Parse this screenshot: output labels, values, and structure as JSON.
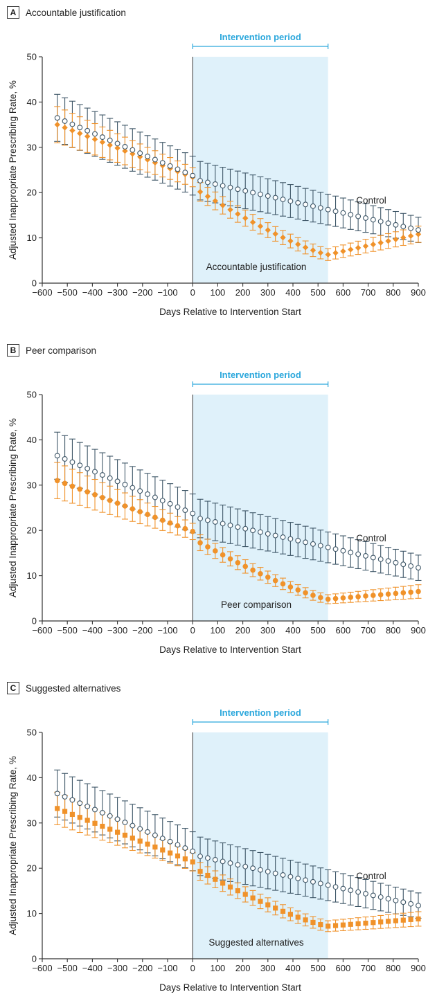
{
  "chart_data": [
    {
      "type": "scatter",
      "panel_letter": "A",
      "title": "Accountable justification",
      "xlabel": "Days Relative to Intervention Start",
      "ylabel": "Adjusted Inappropriate Prescribing Rate, %",
      "xlim": [
        -600,
        900
      ],
      "ylim": [
        0,
        50
      ],
      "xticks": [
        -600,
        -500,
        -400,
        -300,
        -200,
        -100,
        0,
        100,
        200,
        300,
        400,
        500,
        600,
        700,
        800,
        900
      ],
      "yticks": [
        0,
        10,
        20,
        30,
        40,
        50
      ],
      "intervention_period": {
        "label": "Intervention period",
        "start": 0,
        "end": 540
      },
      "marker": "diamond",
      "control": {
        "name": "Control",
        "start": 36.5,
        "pre_slope": -0.02361,
        "post_start": 23.0,
        "post_slope": -0.0125,
        "post_end": 12.0,
        "err_start": 5.2,
        "err_end": 2.8
      },
      "intervention": {
        "name": "Accountable justification",
        "start": 35.0,
        "pre_slope": -0.0215,
        "post_start": 21.2,
        "min_x": 540,
        "min_y": 6.3,
        "end_y": 10.8,
        "err_start": 4.0,
        "err_mid": 1.3,
        "err_end": 1.8
      }
    },
    {
      "type": "scatter",
      "panel_letter": "B",
      "title": "Peer comparison",
      "xlabel": "Days Relative to Intervention Start",
      "ylabel": "Adjusted Inappropriate Prescribing Rate, %",
      "xlim": [
        -600,
        900
      ],
      "ylim": [
        0,
        50
      ],
      "xticks": [
        -600,
        -500,
        -400,
        -300,
        -200,
        -100,
        0,
        100,
        200,
        300,
        400,
        500,
        600,
        700,
        800,
        900
      ],
      "yticks": [
        0,
        10,
        20,
        30,
        40,
        50
      ],
      "intervention_period": {
        "label": "Intervention period",
        "start": 0,
        "end": 540
      },
      "marker": "circle",
      "control": {
        "name": "Control",
        "start": 36.5,
        "pre_slope": -0.02361,
        "post_start": 23.0,
        "post_slope": -0.0125,
        "post_end": 12.0,
        "err_start": 5.2,
        "err_end": 2.8
      },
      "intervention": {
        "name": "Peer comparison",
        "start": 31.0,
        "pre_slope": -0.0208,
        "post_start": 18.2,
        "min_x": 540,
        "min_y": 4.8,
        "end_y": 6.5,
        "err_start": 4.0,
        "err_mid": 1.0,
        "err_end": 1.5
      }
    },
    {
      "type": "scatter",
      "panel_letter": "C",
      "title": "Suggested alternatives",
      "xlabel": "Days Relative to Intervention Start",
      "ylabel": "Adjusted Inappropriate Prescribing Rate, %",
      "xlim": [
        -600,
        900
      ],
      "ylim": [
        0,
        50
      ],
      "xticks": [
        -600,
        -500,
        -400,
        -300,
        -200,
        -100,
        0,
        100,
        200,
        300,
        400,
        500,
        600,
        700,
        800,
        900
      ],
      "yticks": [
        0,
        10,
        20,
        30,
        40,
        50
      ],
      "intervention_period": {
        "label": "Intervention period",
        "start": 0,
        "end": 540
      },
      "marker": "square",
      "control": {
        "name": "Control",
        "start": 36.5,
        "pre_slope": -0.02361,
        "post_start": 23.0,
        "post_slope": -0.0125,
        "post_end": 12.0,
        "err_start": 5.2,
        "err_end": 2.8
      },
      "intervention": {
        "name": "Suggested alternatives",
        "start": 33.2,
        "pre_slope": -0.02185,
        "post_start": 20.2,
        "min_x": 540,
        "min_y": 7.2,
        "end_y": 8.8,
        "err_start": 3.6,
        "err_mid": 1.2,
        "err_end": 1.6
      }
    }
  ],
  "colors": {
    "control": "#3d5566",
    "intervention": "#f0922a",
    "shade": "#dff1fa",
    "period": "#2aa7dc",
    "axis": "#333333"
  }
}
